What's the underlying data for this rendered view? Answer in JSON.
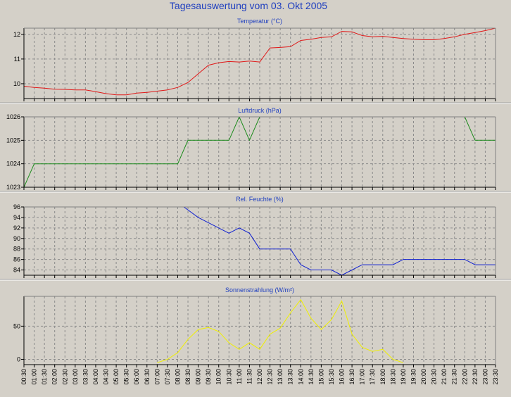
{
  "title": "Tagesauswertung vom 03. Okt 2005",
  "colors": {
    "background": "#d4d0c8",
    "plot_background": "#d4d0c8",
    "title": "#1f3fbf",
    "temperature": "#e01818",
    "pressure": "#1a8a1a",
    "humidity": "#1020d0",
    "radiation": "#f0f000"
  },
  "x_ticks": [
    "00:30",
    "01:00",
    "01:30",
    "02:00",
    "02:30",
    "03:00",
    "03:30",
    "04:00",
    "04:30",
    "05:00",
    "05:30",
    "06:00",
    "06:30",
    "07:00",
    "07:30",
    "08:00",
    "08:30",
    "09:00",
    "09:30",
    "10:00",
    "10:30",
    "11:00",
    "11:30",
    "12:00",
    "12:30",
    "13:00",
    "13:30",
    "14:00",
    "14:30",
    "15:00",
    "15:30",
    "16:00",
    "16:30",
    "17:00",
    "17:30",
    "18:00",
    "18:30",
    "19:00",
    "19:30",
    "20:00",
    "20:30",
    "21:00",
    "21:30",
    "22:00",
    "22:30",
    "23:00",
    "23:30"
  ],
  "chart_data": [
    {
      "type": "line",
      "title": "Temperatur (°C)",
      "x_unit": "hours",
      "xlim": [
        0.5,
        23.5
      ],
      "ylim": [
        9.4,
        12.25
      ],
      "y_ticks": [
        10,
        11,
        12
      ],
      "grid": true,
      "series": [
        {
          "color": "#e01818",
          "x": [
            0.5,
            1,
            1.5,
            2,
            2.5,
            3,
            3.5,
            4,
            4.5,
            5,
            5.5,
            6,
            6.5,
            7,
            7.5,
            8,
            8.5,
            9,
            9.5,
            10,
            10.5,
            11,
            11.5,
            12,
            12.5,
            13,
            13.5,
            14,
            14.5,
            15,
            15.5,
            16,
            16.5,
            17,
            17.5,
            18,
            18.5,
            19,
            19.5,
            20,
            20.5,
            21,
            21.5,
            22,
            22.5,
            23,
            23.5
          ],
          "y": [
            9.9,
            9.85,
            9.82,
            9.78,
            9.77,
            9.75,
            9.75,
            9.68,
            9.6,
            9.55,
            9.55,
            9.62,
            9.65,
            9.7,
            9.75,
            9.85,
            10.05,
            10.4,
            10.75,
            10.85,
            10.9,
            10.88,
            10.92,
            10.88,
            11.45,
            11.47,
            11.5,
            11.75,
            11.8,
            11.87,
            11.9,
            12.12,
            12.1,
            11.95,
            11.9,
            11.92,
            11.87,
            11.83,
            11.8,
            11.78,
            11.78,
            11.83,
            11.9,
            12.0,
            12.07,
            12.15,
            12.25
          ]
        }
      ]
    },
    {
      "type": "line",
      "title": "Luftdruck (hPa)",
      "x_unit": "hours",
      "xlim": [
        0.5,
        23.5
      ],
      "ylim": [
        1023,
        1026
      ],
      "y_ticks": [
        1023,
        1024,
        1025,
        1026
      ],
      "grid": true,
      "series": [
        {
          "color": "#1a8a1a",
          "x": [
            0.5,
            1,
            8,
            8.5,
            10.5,
            11,
            11.5,
            12,
            22,
            22.5,
            23,
            23.5
          ],
          "y": [
            1023,
            1024,
            1024,
            1025,
            1025,
            1026,
            1025,
            1026,
            1026,
            1025,
            1025,
            1025
          ]
        }
      ]
    },
    {
      "type": "line",
      "title": "Rel. Feuchte (%)",
      "x_unit": "hours",
      "xlim": [
        0.5,
        23.5
      ],
      "ylim": [
        83,
        96
      ],
      "y_ticks": [
        84,
        86,
        88,
        90,
        92,
        94,
        96
      ],
      "grid": true,
      "series": [
        {
          "color": "#1020d0",
          "x": [
            8.3,
            9,
            9.5,
            10,
            10.5,
            11,
            11.5,
            12,
            12.5,
            13,
            13.5,
            14,
            14.5,
            15,
            15.5,
            16,
            16.5,
            17,
            17.5,
            18,
            18.5,
            19,
            19.5,
            20,
            20.5,
            21,
            21.5,
            22,
            22.5,
            23,
            23.5
          ],
          "y": [
            96,
            94,
            93,
            92,
            91,
            92,
            91,
            88,
            88,
            88,
            88,
            85,
            84,
            84,
            84,
            83,
            84,
            85,
            85,
            85,
            85,
            86,
            86,
            86,
            86,
            86,
            86,
            86,
            85,
            85,
            85
          ]
        }
      ]
    },
    {
      "type": "line",
      "title": "Sonnenstrahlung (W/m²)",
      "x_unit": "hours",
      "xlim": [
        0.5,
        23.5
      ],
      "ylim": [
        -8,
        95
      ],
      "y_ticks": [
        0,
        50
      ],
      "grid": true,
      "series": [
        {
          "color": "#f0f000",
          "x": [
            7,
            7.5,
            8,
            8.5,
            9,
            9.5,
            10,
            10.5,
            11,
            11.5,
            12,
            12.5,
            13,
            13.5,
            14,
            14.5,
            15,
            15.5,
            16,
            16.5,
            17,
            17.5,
            18,
            18.5,
            19
          ],
          "y": [
            -5,
            0,
            10,
            30,
            45,
            48,
            42,
            25,
            15,
            25,
            15,
            38,
            47,
            70,
            90,
            62,
            45,
            60,
            88,
            38,
            18,
            12,
            15,
            0,
            -5
          ]
        }
      ]
    }
  ]
}
